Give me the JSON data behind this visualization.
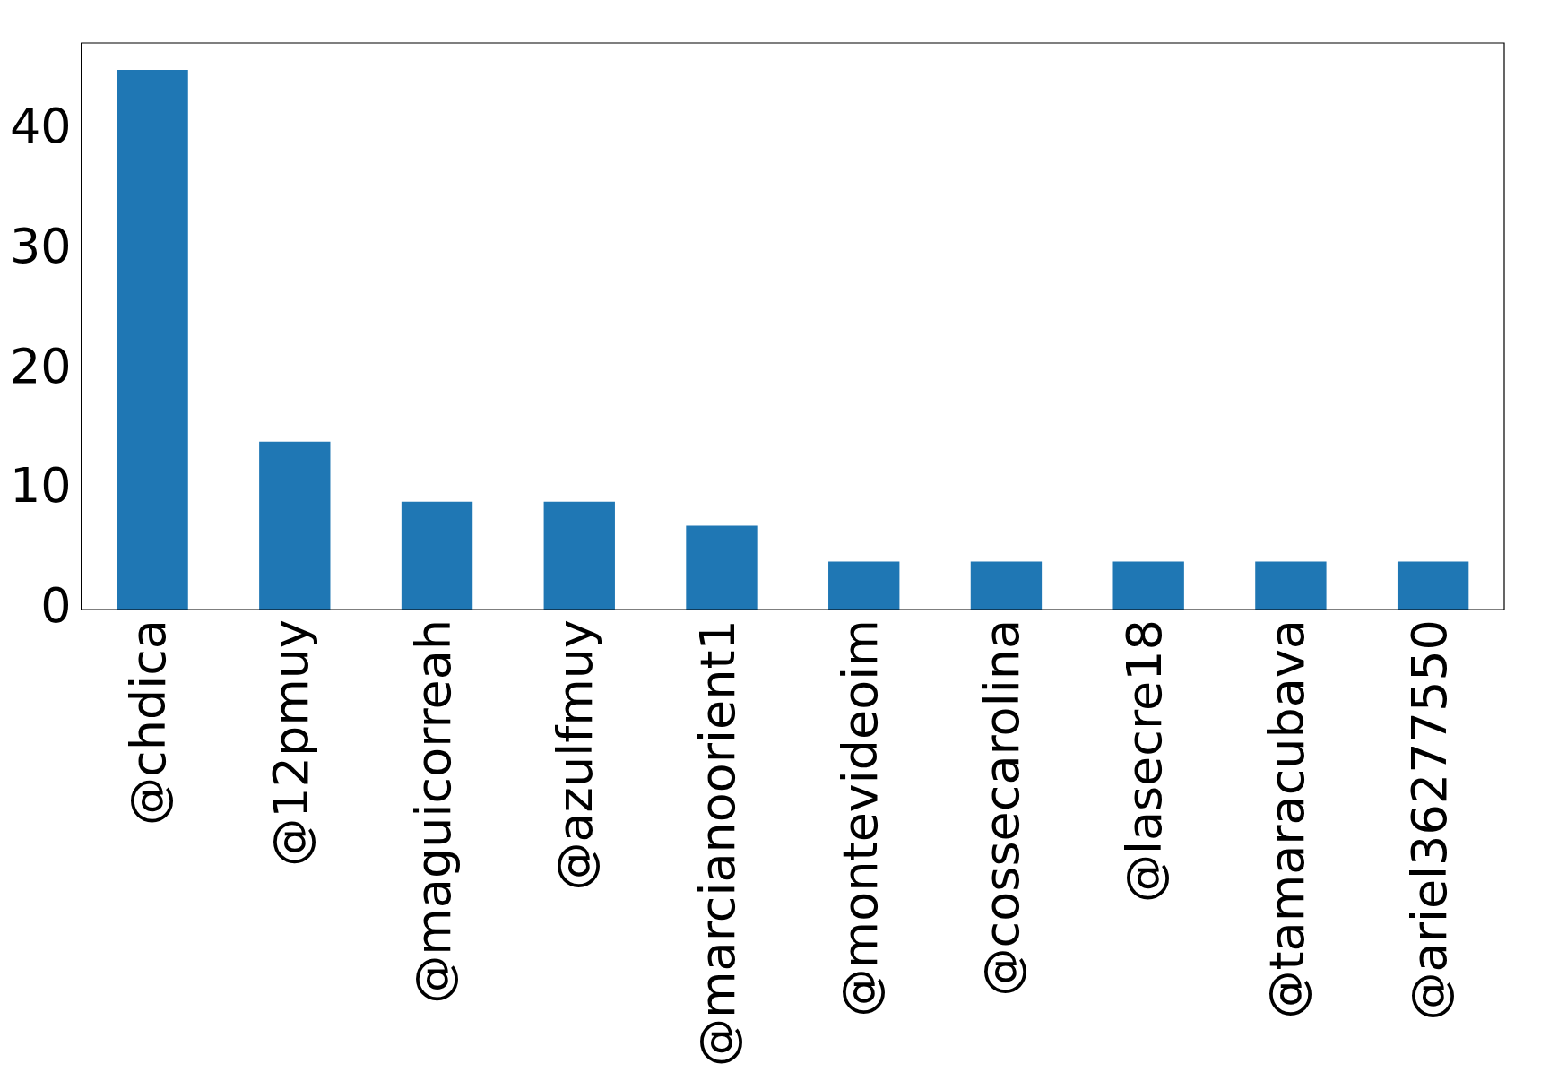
{
  "chart_data": {
    "type": "bar",
    "categories": [
      "@chdica",
      "@12pmuy",
      "@maguicorreah",
      "@azulfmuy",
      "@marcianoorient1",
      "@montevideoim",
      "@cossecarolina",
      "@lasecre18",
      "@tamaracubava",
      "@ariel36277550"
    ],
    "values": [
      45,
      14,
      9,
      9,
      7,
      4,
      4,
      4,
      4,
      4
    ],
    "color": "#1f77b4",
    "ylim": [
      0,
      47.25
    ],
    "yticks": [
      0,
      10,
      20,
      30,
      40
    ],
    "grid": false,
    "legend": false
  }
}
